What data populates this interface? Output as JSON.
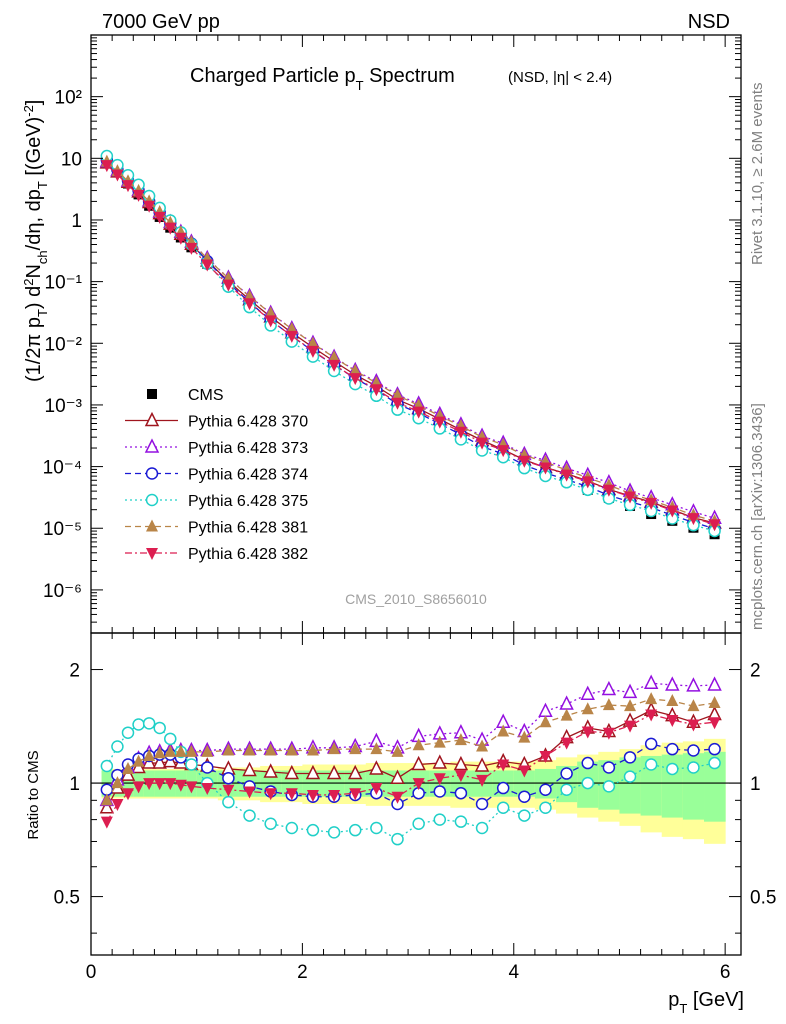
{
  "header": {
    "left": "7000 GeV pp",
    "right": "NSD"
  },
  "side_labels": {
    "top": "Rivet 3.1.10, ≥ 2.6M events",
    "bottom": "mcplots.cern.ch [arXiv:1306.3436]"
  },
  "chart_data": [
    {
      "type": "scatter",
      "title": "Charged Particle p_T Spectrum",
      "subtitle": "(NSD, |η| < 2.4)",
      "ylabel": "(1/2π p_T) d²N_ch/dη, dp_T [(GeV)⁻²]",
      "watermark": "CMS_2010_S8656010",
      "yscale": "log",
      "xlim": [
        0,
        6.15
      ],
      "ylim": [
        2e-07,
        1000
      ],
      "yticks": [
        "10⁻⁶",
        "10⁻⁵",
        "10⁻⁴",
        "10⁻³",
        "10⁻²",
        "10⁻¹",
        "1",
        "10",
        "10²"
      ],
      "legend_position": "left",
      "x": [
        0.15,
        0.25,
        0.35,
        0.45,
        0.55,
        0.65,
        0.75,
        0.85,
        0.95,
        1.1,
        1.3,
        1.5,
        1.7,
        1.9,
        2.1,
        2.3,
        2.5,
        2.7,
        2.9,
        3.1,
        3.3,
        3.5,
        3.7,
        3.9,
        4.1,
        4.3,
        4.5,
        4.7,
        4.9,
        5.1,
        5.3,
        5.5,
        5.7,
        5.9
      ],
      "cms": [
        9.8,
        6.2,
        3.9,
        2.6,
        1.7,
        1.12,
        0.75,
        0.52,
        0.36,
        0.195,
        0.093,
        0.047,
        0.025,
        0.014,
        0.0081,
        0.0048,
        0.0029,
        0.00185,
        0.00118,
        0.00078,
        0.00052,
        0.00035,
        0.00024,
        0.000165,
        0.000115,
        8.2e-05,
        5.8e-05,
        4.2e-05,
        3.1e-05,
        2.3e-05,
        1.7e-05,
        1.32e-05,
        1.02e-05,
        8e-06
      ],
      "series": [
        {
          "name": "CMS",
          "color": "#000000",
          "marker": "square-filled",
          "line": "none",
          "ratio": null
        },
        {
          "name": "Pythia 6.428 370",
          "color": "#a0151e",
          "marker": "triangle-up-open",
          "line": "solid",
          "ratio": [
            0.86,
            0.97,
            1.05,
            1.1,
            1.13,
            1.13,
            1.14,
            1.13,
            1.12,
            1.11,
            1.09,
            1.08,
            1.07,
            1.06,
            1.06,
            1.06,
            1.06,
            1.09,
            1.03,
            1.12,
            1.13,
            1.12,
            1.11,
            1.14,
            1.12,
            1.18,
            1.32,
            1.4,
            1.37,
            1.46,
            1.56,
            1.51,
            1.45,
            1.52
          ]
        },
        {
          "name": "Pythia 6.428 373",
          "color": "#9410e0",
          "marker": "triangle-up-open",
          "line": "dotted",
          "ratio": [
            0.9,
            1.02,
            1.1,
            1.16,
            1.2,
            1.21,
            1.22,
            1.22,
            1.22,
            1.22,
            1.23,
            1.23,
            1.23,
            1.23,
            1.24,
            1.24,
            1.25,
            1.29,
            1.24,
            1.33,
            1.35,
            1.36,
            1.3,
            1.45,
            1.37,
            1.55,
            1.62,
            1.72,
            1.77,
            1.74,
            1.84,
            1.82,
            1.81,
            1.82
          ]
        },
        {
          "name": "Pythia 6.428 374",
          "color": "#1a1ad4",
          "marker": "circle-open",
          "line": "dashed",
          "ratio": [
            0.96,
            1.05,
            1.12,
            1.16,
            1.18,
            1.19,
            1.19,
            1.17,
            1.15,
            1.1,
            1.03,
            0.98,
            0.95,
            0.93,
            0.92,
            0.92,
            0.93,
            0.94,
            0.88,
            0.94,
            0.95,
            0.94,
            0.88,
            0.97,
            0.92,
            0.96,
            1.06,
            1.13,
            1.1,
            1.17,
            1.27,
            1.23,
            1.22,
            1.23
          ]
        },
        {
          "name": "Pythia 6.428 375",
          "color": "#20d0c8",
          "marker": "circle-open",
          "line": "dotted",
          "ratio": [
            1.11,
            1.25,
            1.36,
            1.43,
            1.44,
            1.4,
            1.31,
            1.21,
            1.12,
            1.0,
            0.89,
            0.82,
            0.78,
            0.76,
            0.75,
            0.74,
            0.75,
            0.76,
            0.71,
            0.78,
            0.8,
            0.79,
            0.76,
            0.86,
            0.82,
            0.86,
            0.96,
            1.0,
            0.98,
            1.04,
            1.12,
            1.09,
            1.1,
            1.13
          ]
        },
        {
          "name": "Pythia 6.428 381",
          "color": "#b98548",
          "marker": "triangle-up-filled",
          "line": "dashed",
          "ratio": [
            0.9,
            1.0,
            1.09,
            1.14,
            1.18,
            1.2,
            1.21,
            1.21,
            1.21,
            1.21,
            1.22,
            1.22,
            1.22,
            1.22,
            1.22,
            1.23,
            1.23,
            1.23,
            1.21,
            1.26,
            1.28,
            1.3,
            1.25,
            1.37,
            1.32,
            1.45,
            1.51,
            1.57,
            1.61,
            1.6,
            1.67,
            1.65,
            1.6,
            1.63
          ]
        },
        {
          "name": "Pythia 6.428 382",
          "color": "#dc1e50",
          "marker": "triangle-down-filled",
          "line": "dashdot",
          "ratio": [
            0.79,
            0.88,
            0.94,
            0.98,
            1.0,
            1.0,
            1.0,
            0.99,
            0.98,
            0.97,
            0.96,
            0.95,
            0.94,
            0.94,
            0.93,
            0.93,
            0.94,
            0.97,
            0.92,
            1.0,
            1.03,
            1.05,
            1.02,
            1.12,
            1.08,
            1.18,
            1.28,
            1.37,
            1.36,
            1.42,
            1.52,
            1.47,
            1.43,
            1.45
          ]
        }
      ]
    },
    {
      "type": "scatter",
      "ylabel": "Ratio to CMS",
      "xlabel": "p_T [GeV]",
      "yscale": "log",
      "xlim": [
        0,
        6.15
      ],
      "ylim": [
        0.35,
        2.5
      ],
      "yticks": [
        "0.5",
        "1",
        "2"
      ],
      "xticks": [
        "0",
        "2",
        "4",
        "6"
      ],
      "band_edges": [
        0.1,
        0.2,
        0.3,
        0.4,
        0.5,
        0.6,
        0.7,
        0.8,
        0.9,
        1.0,
        1.2,
        1.4,
        1.6,
        1.8,
        2.0,
        2.2,
        2.4,
        2.6,
        2.8,
        3.0,
        3.2,
        3.4,
        3.6,
        3.8,
        4.0,
        4.2,
        4.4,
        4.6,
        4.8,
        5.0,
        5.2,
        5.4,
        5.6,
        5.8,
        6.0
      ],
      "band_stat": [
        0.08,
        0.08,
        0.08,
        0.08,
        0.08,
        0.08,
        0.08,
        0.08,
        0.08,
        0.08,
        0.08,
        0.08,
        0.08,
        0.08,
        0.08,
        0.08,
        0.08,
        0.08,
        0.08,
        0.08,
        0.08,
        0.08,
        0.08,
        0.08,
        0.08,
        0.09,
        0.11,
        0.14,
        0.15,
        0.17,
        0.18,
        0.19,
        0.2,
        0.21
      ],
      "band_total": [
        0.09,
        0.09,
        0.09,
        0.09,
        0.09,
        0.09,
        0.09,
        0.09,
        0.09,
        0.09,
        0.1,
        0.1,
        0.11,
        0.11,
        0.12,
        0.12,
        0.12,
        0.13,
        0.13,
        0.13,
        0.13,
        0.14,
        0.14,
        0.14,
        0.14,
        0.15,
        0.17,
        0.19,
        0.21,
        0.23,
        0.26,
        0.28,
        0.29,
        0.31
      ],
      "band_colors": {
        "total": "#ffff99",
        "stat": "#99ff99"
      }
    }
  ]
}
